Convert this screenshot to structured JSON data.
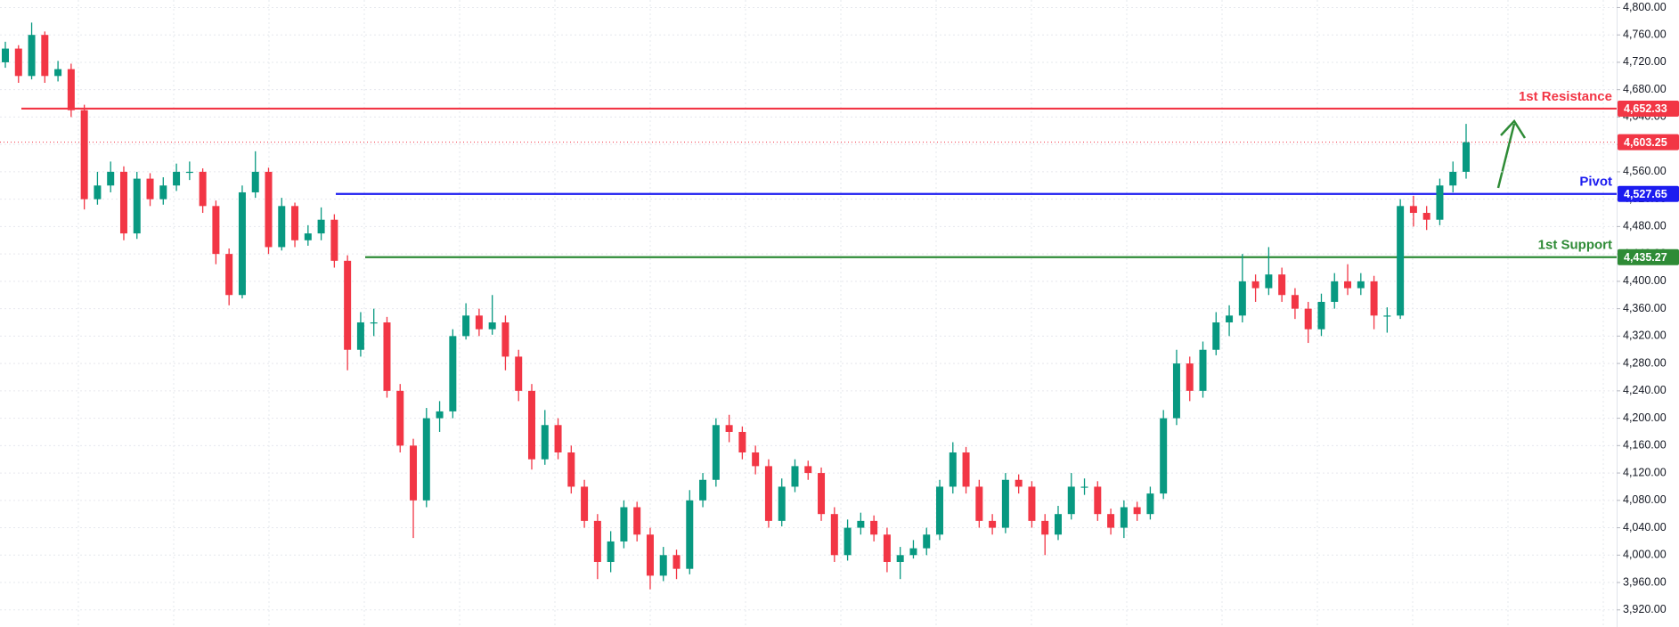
{
  "chart_data": {
    "type": "candlestick",
    "up_color": "#089981",
    "down_color": "#f23645",
    "ylim": [
      3895,
      4811
    ],
    "yticks": [
      {
        "value": 3920,
        "label": "3,920.00"
      },
      {
        "value": 3960,
        "label": "3,960.00"
      },
      {
        "value": 4000,
        "label": "4,000.00"
      },
      {
        "value": 4040,
        "label": "4,040.00"
      },
      {
        "value": 4080,
        "label": "4,080.00"
      },
      {
        "value": 4120,
        "label": "4,120.00"
      },
      {
        "value": 4160,
        "label": "4,160.00"
      },
      {
        "value": 4200,
        "label": "4,200.00"
      },
      {
        "value": 4240,
        "label": "4,240.00"
      },
      {
        "value": 4280,
        "label": "4,280.00"
      },
      {
        "value": 4320,
        "label": "4,320.00"
      },
      {
        "value": 4360,
        "label": "4,360.00"
      },
      {
        "value": 4400,
        "label": "4,400.00"
      },
      {
        "value": 4440,
        "label": "4,440.00"
      },
      {
        "value": 4480,
        "label": "4,480.00"
      },
      {
        "value": 4520,
        "label": "4,520.00"
      },
      {
        "value": 4560,
        "label": "4,560.00"
      },
      {
        "value": 4600,
        "label": "4,600.00"
      },
      {
        "value": 4640,
        "label": "4,640.00"
      },
      {
        "value": 4680,
        "label": "4,680.00"
      },
      {
        "value": 4720,
        "label": "4,720.00"
      },
      {
        "value": 4760,
        "label": "4,760.00"
      },
      {
        "value": 4800,
        "label": "4,800.00"
      }
    ],
    "grid": true,
    "open": [
      4720,
      4740,
      4700,
      4760,
      4700,
      4710,
      4650,
      4520,
      4540,
      4560,
      4470,
      4550,
      4520,
      4540,
      4560,
      4560,
      4510,
      4440,
      4380,
      4530,
      4560,
      4450,
      4510,
      4460,
      4470,
      4490,
      4430,
      4300,
      4340,
      4340,
      4240,
      4160,
      4080,
      4200,
      4210,
      4320,
      4350,
      4330,
      4340,
      4290,
      4240,
      4140,
      4190,
      4150,
      4100,
      4050,
      3990,
      4020,
      4070,
      4030,
      3970,
      4000,
      3980,
      4080,
      4110,
      4190,
      4180,
      4150,
      4130,
      4050,
      4100,
      4130,
      4120,
      4060,
      4000,
      4040,
      4050,
      4030,
      3990,
      4000,
      4010,
      4030,
      4100,
      4150,
      4100,
      4050,
      4040,
      4110,
      4100,
      4050,
      4030,
      4060,
      4100,
      4100,
      4060,
      4040,
      4070,
      4060,
      4090,
      4200,
      4280,
      4240,
      4300,
      4340,
      4350,
      4400,
      4390,
      4410,
      4380,
      4360,
      4330,
      4370,
      4400,
      4390,
      4400,
      4350,
      4350,
      4510,
      4500,
      4490,
      4540,
      4560
    ],
    "high": [
      4750,
      4745,
      4778,
      4765,
      4722,
      4718,
      4658,
      4560,
      4575,
      4568,
      4560,
      4558,
      4552,
      4572,
      4575,
      4565,
      4518,
      4448,
      4540,
      4590,
      4566,
      4522,
      4515,
      4482,
      4508,
      4498,
      4438,
      4355,
      4360,
      4348,
      4250,
      4170,
      4215,
      4225,
      4330,
      4368,
      4360,
      4380,
      4350,
      4300,
      4250,
      4212,
      4200,
      4160,
      4110,
      4060,
      4035,
      4080,
      4078,
      4040,
      4012,
      4008,
      4095,
      4120,
      4200,
      4205,
      4188,
      4160,
      4140,
      4112,
      4140,
      4138,
      4128,
      4070,
      4052,
      4062,
      4058,
      4040,
      4012,
      4022,
      4040,
      4110,
      4165,
      4158,
      4110,
      4060,
      4120,
      4118,
      4108,
      4060,
      4072,
      4120,
      4112,
      4108,
      4068,
      4080,
      4078,
      4100,
      4212,
      4300,
      4290,
      4312,
      4355,
      4365,
      4440,
      4410,
      4450,
      4420,
      4390,
      4370,
      4382,
      4412,
      4425,
      4412,
      4408,
      4362,
      4520,
      4525,
      4510,
      4550,
      4575,
      4630
    ],
    "low": [
      4712,
      4690,
      4695,
      4690,
      4692,
      4640,
      4505,
      4512,
      4530,
      4460,
      4462,
      4510,
      4512,
      4532,
      4548,
      4500,
      4425,
      4365,
      4375,
      4522,
      4440,
      4445,
      4450,
      4452,
      4460,
      4420,
      4270,
      4290,
      4320,
      4230,
      4150,
      4025,
      4070,
      4180,
      4200,
      4315,
      4320,
      4322,
      4270,
      4225,
      4125,
      4132,
      4140,
      4090,
      4040,
      3965,
      3975,
      4010,
      4020,
      3950,
      3962,
      3965,
      3972,
      4070,
      4100,
      4165,
      4140,
      4118,
      4040,
      4042,
      4092,
      4110,
      4050,
      3990,
      3992,
      4030,
      4020,
      3975,
      3965,
      3995,
      4000,
      4022,
      4090,
      4090,
      4040,
      4030,
      4032,
      4090,
      4040,
      4000,
      4022,
      4052,
      4088,
      4050,
      4030,
      4025,
      4050,
      4052,
      4082,
      4190,
      4225,
      4230,
      4292,
      4320,
      4340,
      4370,
      4380,
      4370,
      4345,
      4310,
      4320,
      4360,
      4380,
      4380,
      4330,
      4325,
      4345,
      4480,
      4475,
      4482,
      4530,
      4550
    ],
    "close": [
      4740,
      4700,
      4760,
      4700,
      4710,
      4650,
      4520,
      4540,
      4560,
      4470,
      4550,
      4520,
      4540,
      4560,
      4560,
      4510,
      4440,
      4380,
      4530,
      4560,
      4450,
      4510,
      4460,
      4470,
      4490,
      4430,
      4300,
      4340,
      4340,
      4240,
      4160,
      4080,
      4200,
      4210,
      4320,
      4350,
      4330,
      4340,
      4290,
      4240,
      4140,
      4190,
      4150,
      4100,
      4050,
      3990,
      4020,
      4070,
      4030,
      3970,
      4000,
      3980,
      4080,
      4110,
      4190,
      4180,
      4150,
      4130,
      4050,
      4100,
      4130,
      4120,
      4060,
      4000,
      4040,
      4050,
      4030,
      3990,
      4000,
      4010,
      4030,
      4100,
      4150,
      4100,
      4050,
      4040,
      4110,
      4100,
      4050,
      4030,
      4060,
      4100,
      4100,
      4060,
      4040,
      4070,
      4060,
      4090,
      4200,
      4280,
      4240,
      4300,
      4340,
      4350,
      4400,
      4390,
      4410,
      4380,
      4360,
      4330,
      4370,
      4400,
      4390,
      4400,
      4350,
      4350,
      4510,
      4500,
      4490,
      4540,
      4560,
      4603.25
    ],
    "levels": [
      {
        "name": "1st Resistance",
        "value": 4652.33,
        "label": "4,652.33",
        "color": "#f23645"
      },
      {
        "name": "Pivot",
        "value": 4527.65,
        "label": "4,527.65",
        "color": "#1c1cf0"
      },
      {
        "name": "1st Support",
        "value": 4435.27,
        "label": "4,435.27",
        "color": "#2e8b36"
      }
    ],
    "last_price": {
      "value": 4603.25,
      "label": "4,603.25",
      "color": "#f23645"
    }
  }
}
